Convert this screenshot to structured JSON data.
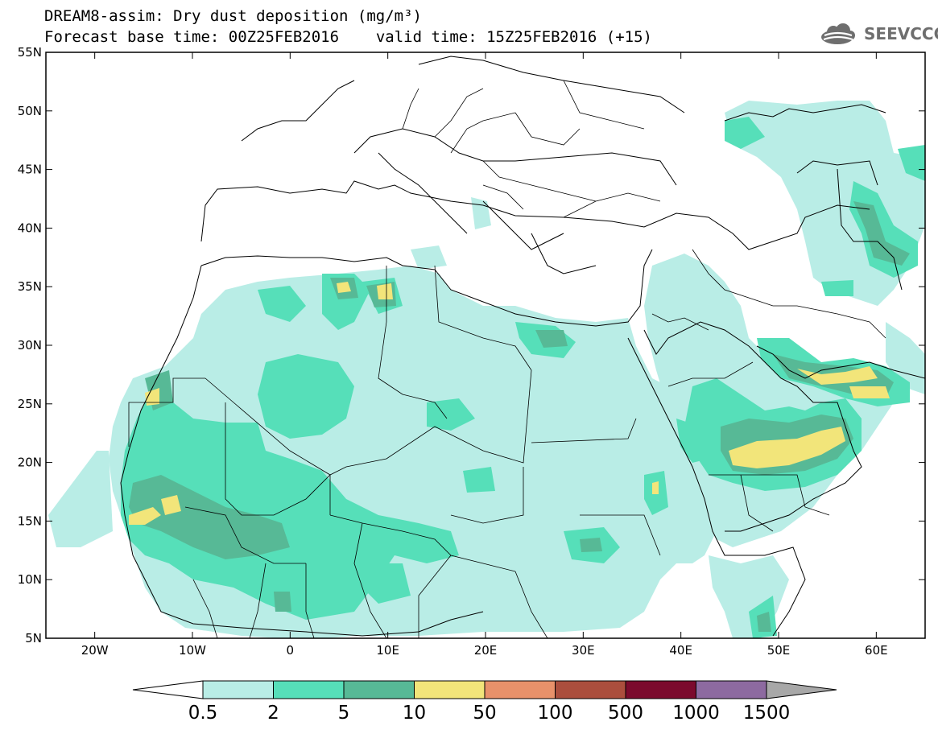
{
  "header": {
    "title": "DREAM8-assim: Dry dust deposition (mg/m³)",
    "base_time": "Forecast base time: 00Z25FEB2016",
    "valid_time": "valid time: 15Z25FEB2016 (+15)"
  },
  "logo": {
    "text": "SEEVCCC",
    "icon": "cloud-logo-icon"
  },
  "axes": {
    "lon_min": -25,
    "lon_max": 65,
    "lat_min": 5,
    "lat_max": 55,
    "lon_ticks": [
      {
        "value": -20,
        "label": "20W"
      },
      {
        "value": -10,
        "label": "10W"
      },
      {
        "value": 0,
        "label": "0"
      },
      {
        "value": 10,
        "label": "10E"
      },
      {
        "value": 20,
        "label": "20E"
      },
      {
        "value": 30,
        "label": "30E"
      },
      {
        "value": 40,
        "label": "40E"
      },
      {
        "value": 50,
        "label": "50E"
      },
      {
        "value": 60,
        "label": "60E"
      }
    ],
    "lat_ticks": [
      {
        "value": 55,
        "label": "55N"
      },
      {
        "value": 50,
        "label": "50N"
      },
      {
        "value": 45,
        "label": "45N"
      },
      {
        "value": 40,
        "label": "40N"
      },
      {
        "value": 35,
        "label": "35N"
      },
      {
        "value": 30,
        "label": "30N"
      },
      {
        "value": 25,
        "label": "25N"
      },
      {
        "value": 20,
        "label": "20N"
      },
      {
        "value": 15,
        "label": "15N"
      },
      {
        "value": 10,
        "label": "10N"
      },
      {
        "value": 5,
        "label": "5N"
      }
    ]
  },
  "legend": {
    "colors": [
      "#b9ede6",
      "#56dfb9",
      "#57b996",
      "#f2e57a",
      "#e8916a",
      "#ab4e3d",
      "#7b0a2d",
      "#8d6aa0",
      "#a8a8a8"
    ],
    "labels": [
      "0.5",
      "2",
      "5",
      "10",
      "50",
      "100",
      "500",
      "1000",
      "1500"
    ]
  }
}
